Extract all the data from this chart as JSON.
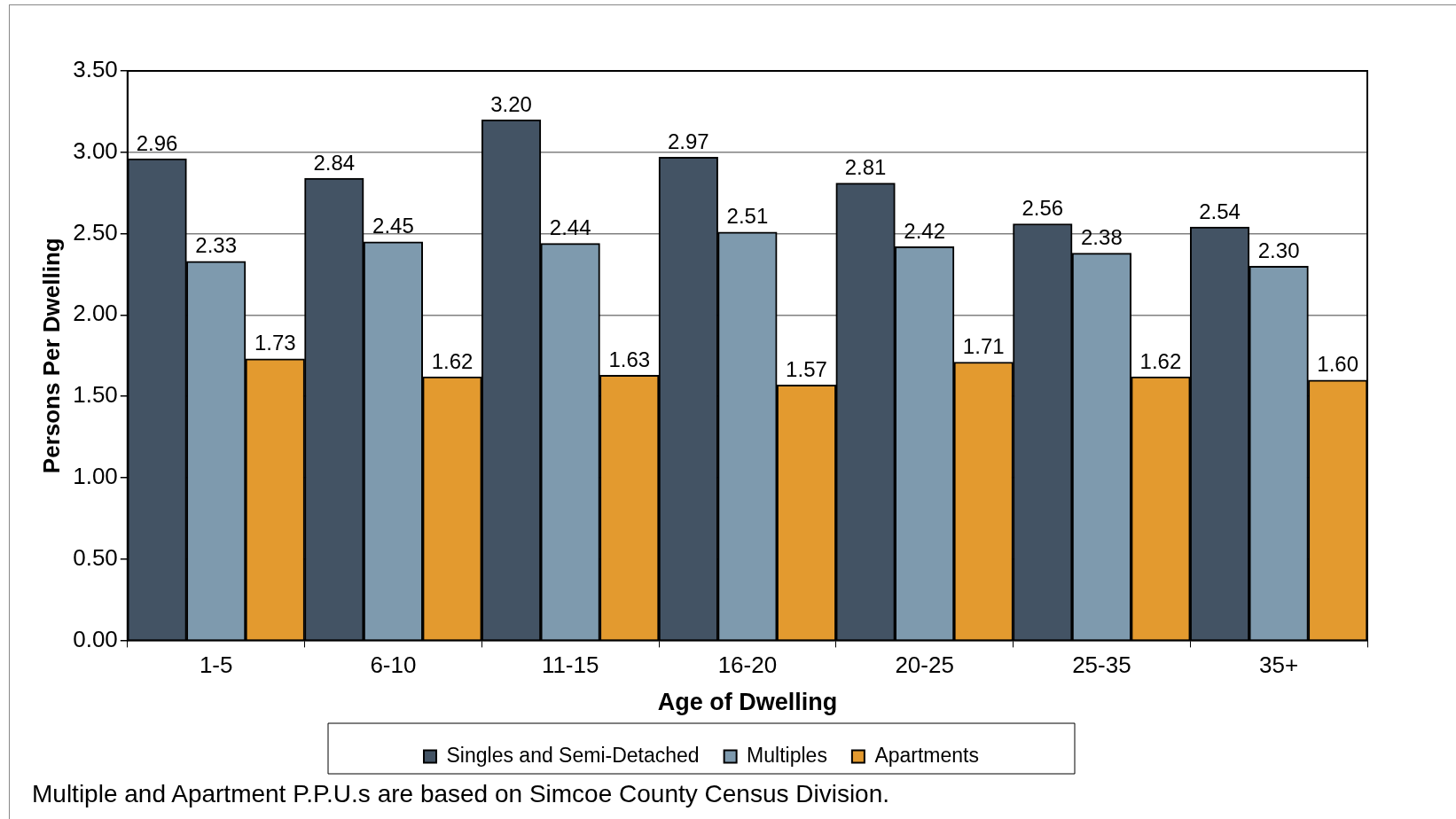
{
  "chart_data": {
    "type": "bar",
    "xlabel": "Age of Dwelling",
    "ylabel": "Persons Per Dwelling",
    "categories": [
      "1-5",
      "6-10",
      "11-15",
      "16-20",
      "20-25",
      "25-35",
      "35+"
    ],
    "series": [
      {
        "name": "Singles and Semi-Detached",
        "color": "#435364",
        "values": [
          2.96,
          2.84,
          3.2,
          2.97,
          2.81,
          2.56,
          2.54
        ],
        "value_labels": [
          "2.96",
          "2.84",
          "3.20",
          "2.97",
          "2.81",
          "2.56",
          "2.54"
        ]
      },
      {
        "name": "Multiples",
        "color": "#7e9aae",
        "values": [
          2.33,
          2.45,
          2.44,
          2.51,
          2.42,
          2.38,
          2.3
        ],
        "value_labels": [
          "2.33",
          "2.45",
          "2.44",
          "2.51",
          "2.42",
          "2.38",
          "2.30"
        ]
      },
      {
        "name": "Apartments",
        "color": "#e39a2f",
        "values": [
          1.73,
          1.62,
          1.63,
          1.57,
          1.71,
          1.62,
          1.6
        ],
        "value_labels": [
          "1.73",
          "1.62",
          "1.63",
          "1.57",
          "1.71",
          "1.62",
          "1.60"
        ]
      }
    ],
    "ylim": [
      0,
      3.5
    ],
    "yticks": [
      {
        "value": 0,
        "label": "0.00"
      },
      {
        "value": 0.5,
        "label": "0.50"
      },
      {
        "value": 1,
        "label": "1.00"
      },
      {
        "value": 1.5,
        "label": "1.50"
      },
      {
        "value": 2,
        "label": "2.00"
      },
      {
        "value": 2.5,
        "label": "2.50"
      },
      {
        "value": 3,
        "label": "3.00"
      },
      {
        "value": 3.5,
        "label": "3.50"
      }
    ],
    "grid": "y",
    "legend": "bottom",
    "annotations": [
      "Multiple and Apartment P.P.U.s are based on Simcoe County Census Division."
    ]
  }
}
